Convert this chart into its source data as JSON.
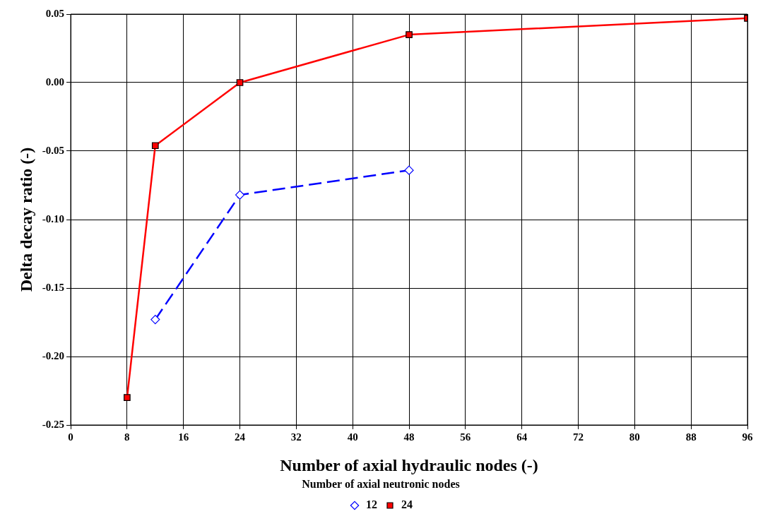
{
  "chart_data": {
    "type": "line",
    "xlabel": "Number of axial hydraulic nodes (-)",
    "ylabel": "Delta decay ratio (-)",
    "legend_title": "Number of axial neutronic nodes",
    "legend": "bottom",
    "grid": true,
    "xlim": [
      0,
      96
    ],
    "xticks": [
      0,
      8,
      16,
      24,
      32,
      40,
      48,
      56,
      64,
      72,
      80,
      88,
      96
    ],
    "ylim": [
      -0.25,
      0.05
    ],
    "yticks": [
      {
        "value": -0.25,
        "label": "-0.25"
      },
      {
        "value": -0.2,
        "label": "-0.20"
      },
      {
        "value": -0.15,
        "label": "-0.15"
      },
      {
        "value": -0.1,
        "label": "-0.10"
      },
      {
        "value": -0.05,
        "label": "-0.05"
      },
      {
        "value": 0,
        "label": "0.00"
      },
      0.05
    ],
    "series": [
      {
        "name": "12",
        "color": "#0000ff",
        "marker": "diamond",
        "line_style": "dashed",
        "x": [
          12,
          24,
          48
        ],
        "values": [
          -0.173,
          -0.082,
          -0.064
        ]
      },
      {
        "name": "24",
        "color": "#ff0000",
        "marker": "square",
        "line_style": "solid",
        "x": [
          8,
          12,
          24,
          48,
          96
        ],
        "values": [
          -0.23,
          -0.046,
          0,
          0.035,
          0.047
        ]
      }
    ]
  }
}
